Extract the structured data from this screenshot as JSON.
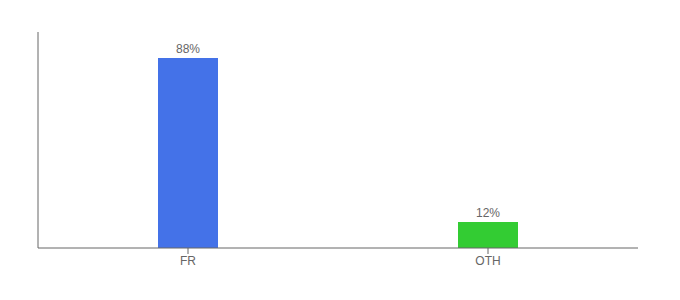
{
  "chart_data": {
    "type": "bar",
    "categories": [
      "FR",
      "OTH"
    ],
    "values": [
      88,
      12
    ],
    "colors": [
      "#4472e8",
      "#33cc33"
    ],
    "value_labels": [
      "88%",
      "12%"
    ],
    "data_labels": true,
    "ylim": [
      0,
      100
    ],
    "tick_labels": "x",
    "grid": false
  }
}
